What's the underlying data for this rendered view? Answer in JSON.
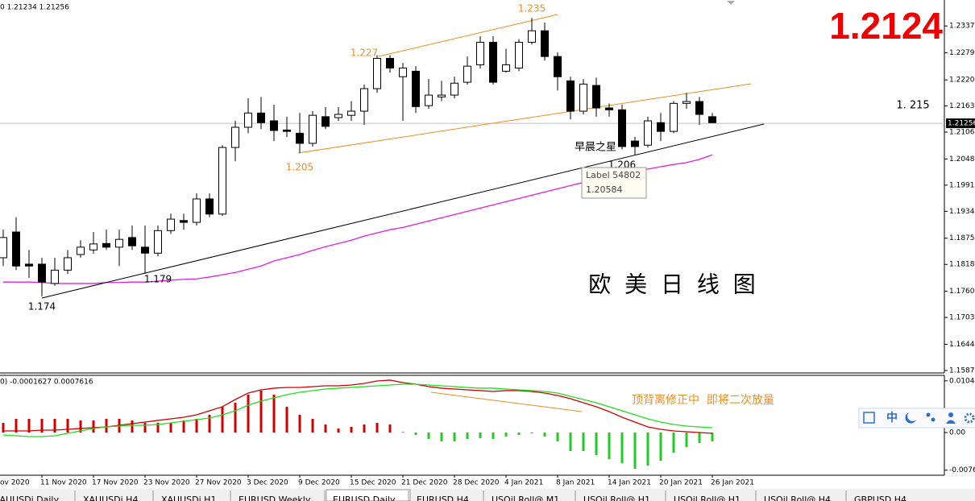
{
  "chart_data": [
    {
      "type": "candlestick",
      "header": "0 1.21234 1.21256",
      "categories": [
        null,
        null,
        null,
        "11 Nov 2020",
        null,
        null,
        null,
        "17 Nov 2020",
        null,
        null,
        null,
        "23 Nov 2020",
        null,
        null,
        null,
        "27 Nov 2020",
        null,
        null,
        null,
        "3 Dec 2020",
        null,
        null,
        null,
        "9 Dec 2020",
        null,
        null,
        null,
        "15 Dec 2020",
        null,
        null,
        null,
        "21 Dec 2020",
        null,
        null,
        null,
        "28 Dec 2020",
        null,
        null,
        null,
        "4 Jan 2021",
        null,
        null,
        null,
        "8 Jan 2021",
        null,
        null,
        null,
        "14 Jan 2021",
        null,
        null,
        null,
        "20 Jan 2021",
        null,
        null,
        null,
        "26 Jan 2021"
      ],
      "first_date_label": "ov 2020",
      "open": [
        1.1833,
        1.1889,
        1.1819,
        1.1819,
        1.1777,
        1.1806,
        1.184,
        1.185,
        1.1864,
        1.1856,
        1.1877,
        1.1856,
        1.1843,
        1.1892,
        1.1914,
        1.191,
        1.1961,
        1.1928,
        1.2073,
        1.2117,
        1.2148,
        1.2131,
        1.2111,
        1.2104,
        1.2082,
        1.214,
        1.2138,
        1.2143,
        1.2152,
        1.2201,
        1.2267,
        1.2227,
        1.2239,
        1.2164,
        1.2183,
        1.2187,
        1.2215,
        1.2253,
        1.2302,
        1.2239,
        1.2246,
        1.2302,
        1.2327,
        1.2271,
        1.2218,
        1.2152,
        1.2208,
        1.2159,
        1.2155,
        1.2087,
        1.2078,
        1.2127,
        1.2108,
        1.2169,
        1.2173,
        1.214
      ],
      "high": [
        1.1894,
        1.1921,
        1.185,
        1.1833,
        1.1833,
        1.185,
        1.1871,
        1.1889,
        1.1894,
        1.1894,
        1.1903,
        1.1903,
        1.1903,
        1.1929,
        1.1929,
        1.1973,
        1.1973,
        1.2078,
        1.2131,
        1.218,
        1.2183,
        1.2166,
        1.214,
        1.2148,
        1.2152,
        1.2161,
        1.2161,
        1.2174,
        1.221,
        1.2274,
        1.2274,
        1.2257,
        1.225,
        1.2222,
        1.2218,
        1.2227,
        1.2271,
        1.2315,
        1.2315,
        1.2288,
        1.2309,
        1.2355,
        1.2345,
        1.228,
        1.2227,
        1.2222,
        1.2225,
        1.2169,
        1.2166,
        1.2096,
        1.214,
        1.2148,
        1.2174,
        1.2192,
        1.2183,
        1.2148
      ],
      "low": [
        1.1815,
        1.1806,
        1.1789,
        1.1749,
        1.1772,
        1.1798,
        1.1833,
        1.1842,
        1.185,
        1.1815,
        1.185,
        1.1798,
        1.1836,
        1.1885,
        1.1894,
        1.1903,
        1.1921,
        1.1924,
        1.2043,
        1.2104,
        1.2113,
        1.2087,
        1.2096,
        1.2061,
        1.2075,
        1.2113,
        1.2131,
        1.2131,
        1.2122,
        1.2192,
        1.2236,
        1.2131,
        1.2148,
        1.2157,
        1.2174,
        1.218,
        1.221,
        1.2245,
        1.221,
        1.2236,
        1.2239,
        1.2297,
        1.2262,
        1.2197,
        1.2134,
        1.2145,
        1.214,
        1.214,
        1.2069,
        1.2057,
        1.2073,
        1.2087,
        1.2104,
        1.2157,
        1.2122,
        1.2126
      ],
      "close": [
        1.1877,
        1.1815,
        1.1815,
        1.178,
        1.1806,
        1.1833,
        1.1856,
        1.1863,
        1.1856,
        1.1873,
        1.1859,
        1.1843,
        1.1892,
        1.1917,
        1.191,
        1.1961,
        1.1928,
        1.2073,
        1.2117,
        1.2148,
        1.2127,
        1.211,
        1.2108,
        1.2082,
        1.2143,
        1.2119,
        1.2145,
        1.2152,
        1.2201,
        1.2267,
        1.2246,
        1.2246,
        1.2162,
        1.2187,
        1.2187,
        1.2213,
        1.225,
        1.2302,
        1.2215,
        1.2253,
        1.2302,
        1.2327,
        1.2271,
        1.2227,
        1.2152,
        1.2211,
        1.2159,
        1.2155,
        1.2075,
        1.2075,
        1.2131,
        1.2108,
        1.2169,
        1.2173,
        1.2145,
        1.2127
      ],
      "up_color": "#ffffff",
      "down_color": "#000000",
      "ma": {
        "color": "#e020e0",
        "values": [
          1.178,
          1.178,
          1.178,
          1.1779,
          1.1777,
          1.1777,
          1.1777,
          1.1777,
          1.1779,
          1.1779,
          1.178,
          1.178,
          1.1782,
          1.1784,
          1.1786,
          1.1787,
          1.1791,
          1.1796,
          1.1801,
          1.1808,
          1.1815,
          1.1826,
          1.1833,
          1.184,
          1.1849,
          1.1857,
          1.1864,
          1.1871,
          1.188,
          1.1887,
          1.1894,
          1.1899,
          1.1906,
          1.1913,
          1.192,
          1.1927,
          1.1934,
          1.1941,
          1.1948,
          1.1955,
          1.1962,
          1.1969,
          1.1976,
          1.1983,
          1.199,
          1.1997,
          1.2005,
          1.201,
          1.2015,
          1.202,
          1.2026,
          1.2031,
          1.2036,
          1.204,
          1.2047,
          1.2057
        ]
      },
      "ylim": [
        1.1584,
        1.2394
      ],
      "yticks": [
        1.23375,
        {
          "value": 1.2279,
          "label": "1.22790"
        },
        {
          "value": 1.222,
          "label": "1.22200"
        },
        1.21635,
        1.21065,
        {
          "value": 1.2048,
          "label": "1.20480"
        },
        {
          "value": 1.1991,
          "label": "1.19910"
        },
        {
          "value": 1.1934,
          "label": "1.19340"
        },
        1.18755,
        1.18185,
        {
          "value": 1.176,
          "label": "1.17600"
        },
        {
          "value": 1.1703,
          "label": "1.17030"
        },
        1.16445,
        1.15875
      ],
      "current_price": 1.21256,
      "price_callout": "1.2124",
      "annotations": [
        "1.235",
        "1.227",
        "1.205",
        "1.206",
        "1.179",
        "1.174",
        "1. 215",
        "早晨之星",
        "欧 美 日 线 图"
      ],
      "tooltip": {
        "title": "Label 54802",
        "text": "1.20584"
      }
    },
    {
      "type": "macd",
      "header": "0) -0.0001627 0.0007616",
      "ylim": [
        -0.00864,
        0.01157
      ],
      "yticks": [
        0.01046,
        {
          "value": 0,
          "label": "0.00"
        },
        -0.00762
      ],
      "histogram": {
        "pos_color": "#d00000",
        "neg_color": "#22cc22",
        "values": [
          0.00196,
          0.00277,
          0.00277,
          0.00277,
          0.00277,
          0.00277,
          0.00245,
          0.00245,
          0.00277,
          0.00277,
          0.00245,
          0.00196,
          0.00196,
          0.00196,
          0.00245,
          0.00277,
          0.00359,
          0.00522,
          0.00603,
          0.00766,
          0.00848,
          0.00766,
          0.00522,
          0.00359,
          0.00277,
          0.00163,
          0.00082,
          0.00114,
          0.00163,
          0.00196,
          0.00163,
          0.0001,
          -0.00049,
          -0.0013,
          -0.00179,
          -0.00179,
          -0.0013,
          -0.00114,
          -0.0013,
          -0.00082,
          -0.00049,
          -0.00016,
          -0.00082,
          -0.00179,
          -0.00375,
          -0.00375,
          -0.00456,
          -0.00538,
          -0.00619,
          -0.00734,
          -0.00668,
          -0.00571,
          -0.00408,
          -0.00293,
          -0.00212,
          -0.00179
        ]
      },
      "series": [
        {
          "color": "#d00000",
          "values": [
            0.00033,
            0.00033,
            0.00033,
            0.00049,
            0.00049,
            0.00065,
            0.00082,
            0.00098,
            0.00114,
            0.00147,
            0.00179,
            0.00212,
            0.00245,
            0.00277,
            0.0031,
            0.00359,
            0.0044,
            0.00522,
            0.00668,
            0.00799,
            0.00864,
            0.00897,
            0.00913,
            0.00913,
            0.00929,
            0.00945,
            0.00945,
            0.00962,
            0.00994,
            0.01043,
            0.0106,
            0.01011,
            0.00978,
            0.00929,
            0.00897,
            0.0088,
            0.00864,
            0.00848,
            0.00831,
            0.00848,
            0.00848,
            0.00831,
            0.00799,
            0.0075,
            0.00685,
            0.00603,
            0.00522,
            0.00424,
            0.0031,
            0.00212,
            0.00114,
            0.00065,
            0.00033,
            0.00016,
            0,
            -0.00016
          ]
        },
        {
          "color": "#22dd22",
          "values": [
            -0.00049,
            -0.00065,
            -0.00082,
            -0.00082,
            -0.00065,
            -0.00016,
            0.00033,
            0.00082,
            0.00114,
            0.0013,
            0.00147,
            0.00147,
            0.00163,
            0.00196,
            0.00228,
            0.00261,
            0.00293,
            0.00359,
            0.0044,
            0.00554,
            0.00636,
            0.00701,
            0.00766,
            0.00815,
            0.00848,
            0.0088,
            0.00897,
            0.00913,
            0.00929,
            0.00945,
            0.00962,
            0.00978,
            0.00978,
            0.00962,
            0.00945,
            0.00929,
            0.00913,
            0.00897,
            0.00897,
            0.0088,
            0.00864,
            0.00848,
            0.00831,
            0.00799,
            0.00734,
            0.00668,
            0.00603,
            0.00522,
            0.0044,
            0.00359,
            0.00277,
            0.00212,
            0.00163,
            0.0013,
            0.00114,
            0.00098
          ]
        }
      ],
      "annotations": [
        "顶背离修正中  即将二次放量"
      ]
    }
  ],
  "tabs": [
    "XAUUSDi,Daily",
    "XAUUSDi,H4",
    "XAUUSDi,H1",
    "EURUSD,Weekly",
    "EURUSD,Daily",
    "EURUSD,H4",
    "USOil.Roll@,M1",
    "USOil.Roll@,H1",
    "USOil.Roll@,H1",
    "USOil.Roll@,H4",
    "GBPUSD,H4"
  ],
  "active_tab": 4,
  "toolbar": {
    "lang": "中"
  }
}
